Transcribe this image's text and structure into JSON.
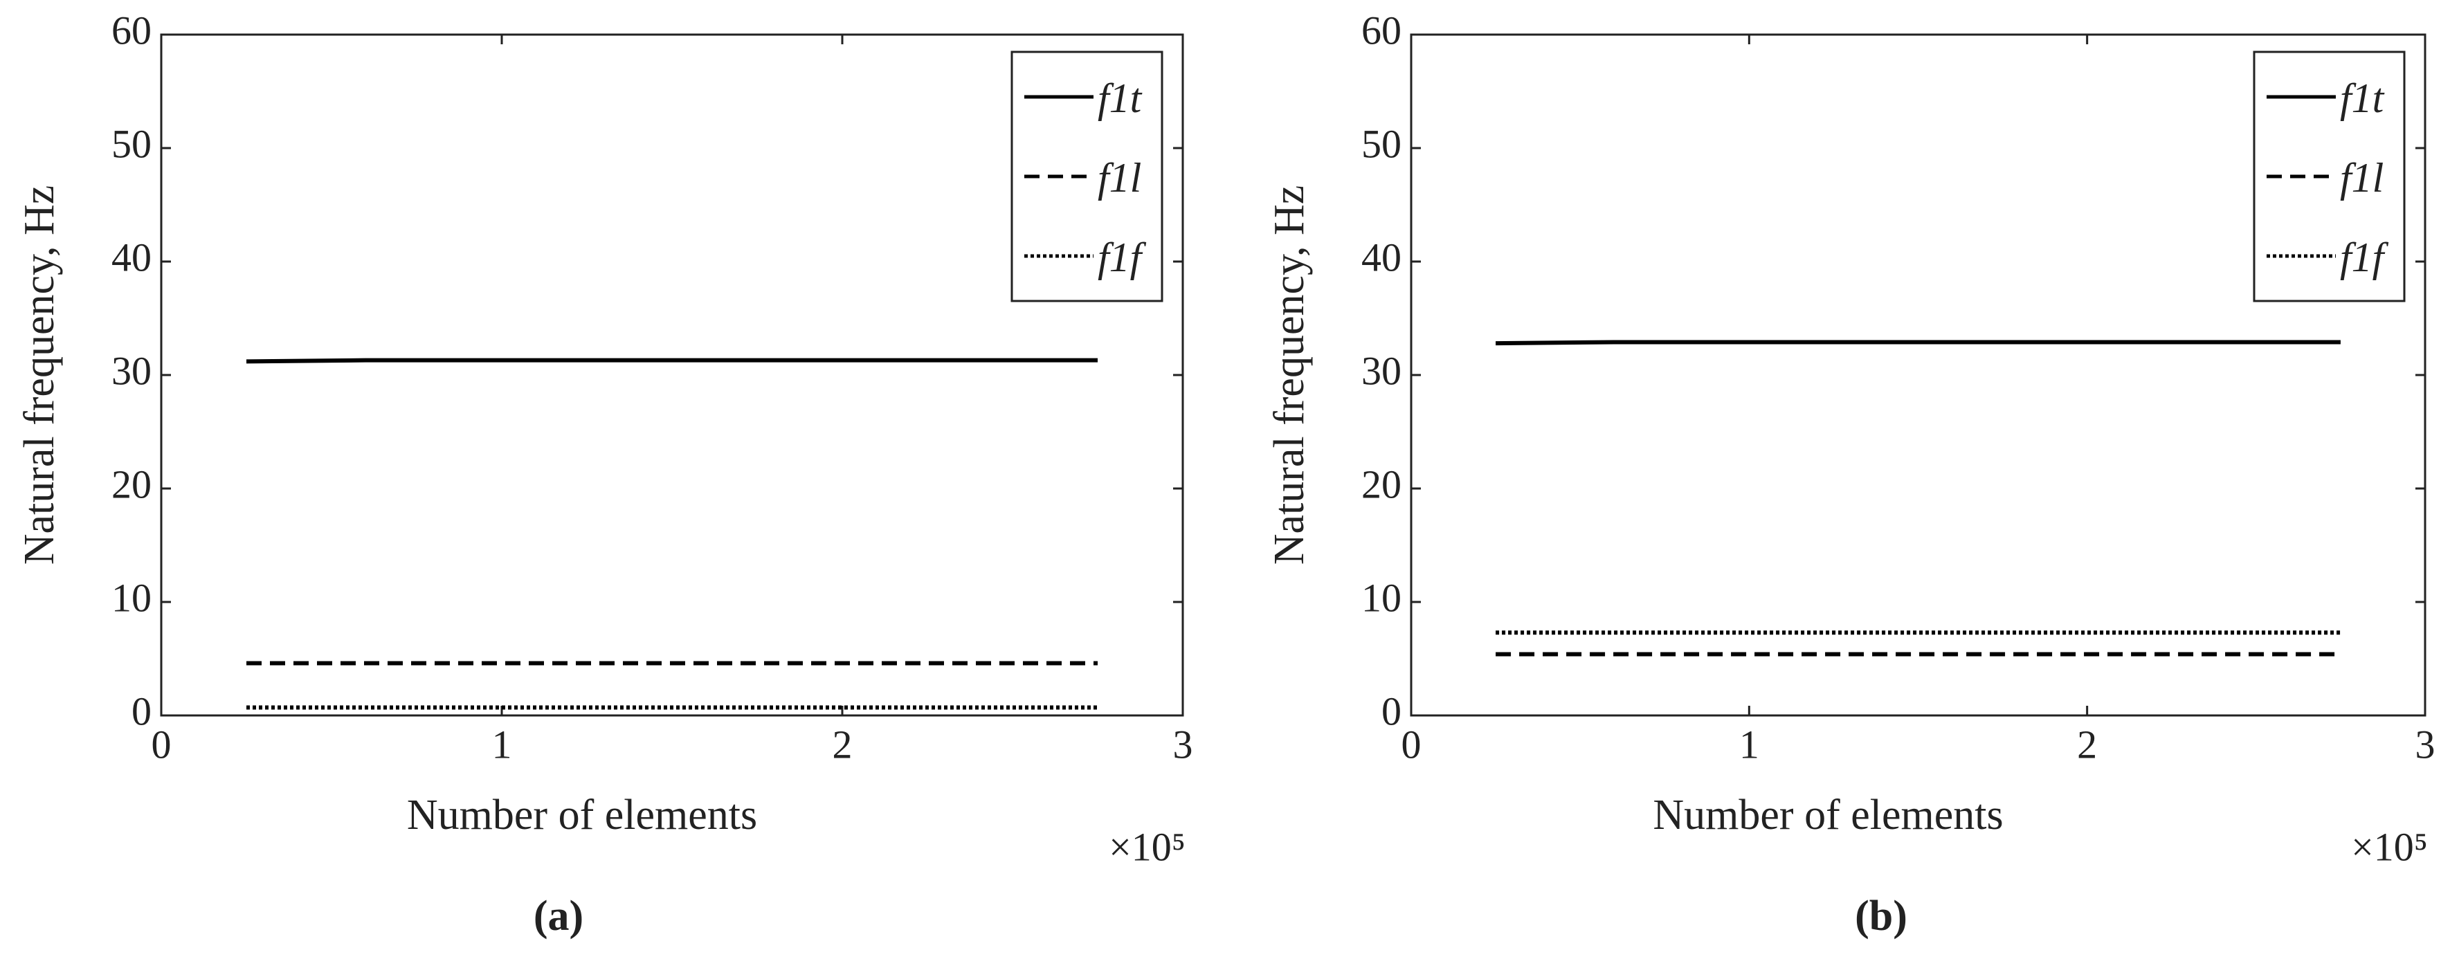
{
  "chart_data": [
    {
      "type": "line",
      "label": "(a)",
      "xlabel": "Number of elements",
      "ylabel": "Natural frequency, Hz",
      "x_multiplier": "×10⁵",
      "xlim": [
        0,
        3
      ],
      "ylim": [
        0,
        60
      ],
      "xticks": [
        0,
        1,
        2,
        3
      ],
      "yticks": [
        0,
        10,
        20,
        30,
        40,
        50,
        60
      ],
      "legend": "upper right",
      "x": [
        0.25,
        0.6,
        1,
        1.5,
        2,
        2.5,
        2.75
      ],
      "series": [
        {
          "name": "f1t",
          "color": "#000000",
          "style": "solid",
          "values": [
            31.2,
            31.3,
            31.3,
            31.3,
            31.3,
            31.3,
            31.3
          ]
        },
        {
          "name": "f1l",
          "color": "#000000",
          "style": "dashed",
          "values": [
            4.6,
            4.6,
            4.6,
            4.6,
            4.6,
            4.6,
            4.6
          ]
        },
        {
          "name": "f1f",
          "color": "#000000",
          "style": "dotted",
          "values": [
            0.7,
            0.7,
            0.7,
            0.7,
            0.7,
            0.7,
            0.7
          ]
        }
      ]
    },
    {
      "type": "line",
      "label": "(b)",
      "xlabel": "Number of elements",
      "ylabel": "Natural frequency, Hz",
      "x_multiplier": "×10⁵",
      "xlim": [
        0,
        3
      ],
      "ylim": [
        0,
        60
      ],
      "xticks": [
        0,
        1,
        2,
        3
      ],
      "yticks": [
        0,
        10,
        20,
        30,
        40,
        50,
        60
      ],
      "legend": "upper right",
      "x": [
        0.25,
        0.6,
        1,
        1.5,
        2,
        2.5,
        2.75
      ],
      "series": [
        {
          "name": "f1t",
          "color": "#000000",
          "style": "solid",
          "values": [
            32.8,
            32.9,
            32.9,
            32.9,
            32.9,
            32.9,
            32.9
          ]
        },
        {
          "name": "f1l",
          "color": "#000000",
          "style": "dashed",
          "values": [
            5.4,
            5.4,
            5.4,
            5.4,
            5.4,
            5.4,
            5.4
          ]
        },
        {
          "name": "f1f",
          "color": "#000000",
          "style": "dotted",
          "values": [
            7.3,
            7.3,
            7.3,
            7.3,
            7.3,
            7.3,
            7.3
          ]
        }
      ]
    }
  ]
}
